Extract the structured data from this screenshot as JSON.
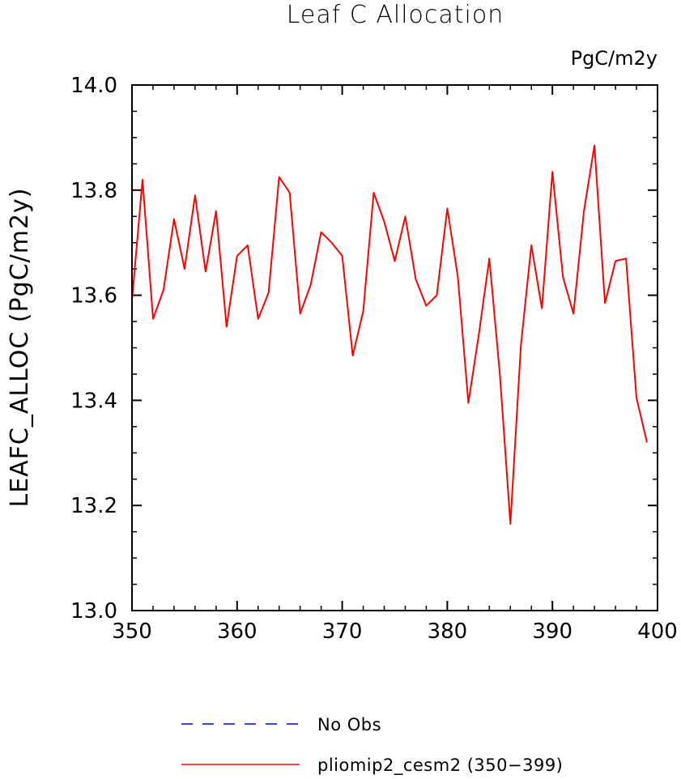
{
  "chart_data": {
    "type": "line",
    "title": "Leaf C Allocation",
    "units": "PgC/m2y",
    "xlabel": "",
    "ylabel": "LEAFC_ALLOC   (PgC/m2y)",
    "xlim": [
      350,
      400
    ],
    "ylim": [
      13.0,
      14.0
    ],
    "x_ticks": [
      350,
      360,
      370,
      380,
      390,
      400
    ],
    "x_tick_labels": [
      "350",
      "360",
      "370",
      "380",
      "390",
      "400"
    ],
    "y_ticks": [
      13.0,
      13.2,
      13.4,
      13.6,
      13.8,
      14.0
    ],
    "y_tick_labels": [
      "13.0",
      "13.2",
      "13.4",
      "13.6",
      "13.8",
      "14.0"
    ],
    "grid": false,
    "legend_position": "bottom",
    "legend": [
      {
        "label": "No Obs",
        "color": "#0000ff",
        "style": "dashed"
      },
      {
        "label": "pliomip2_cesm2 (350−399)",
        "color": "#ff0000",
        "style": "solid"
      }
    ],
    "series": [
      {
        "name": "pliomip2_cesm2 (350−399)",
        "color": "#ff0000",
        "x": [
          350,
          351,
          352,
          353,
          354,
          355,
          356,
          357,
          358,
          359,
          360,
          361,
          362,
          363,
          364,
          365,
          366,
          367,
          368,
          369,
          370,
          371,
          372,
          373,
          374,
          375,
          376,
          377,
          378,
          379,
          380,
          381,
          382,
          383,
          384,
          385,
          386,
          387,
          388,
          389,
          390,
          391,
          392,
          393,
          394,
          395,
          396,
          397,
          398,
          399
        ],
        "y": [
          13.59,
          13.82,
          13.555,
          13.61,
          13.745,
          13.65,
          13.79,
          13.645,
          13.76,
          13.54,
          13.675,
          13.695,
          13.555,
          13.605,
          13.825,
          13.795,
          13.565,
          13.62,
          13.72,
          13.7,
          13.675,
          13.485,
          13.57,
          13.795,
          13.74,
          13.665,
          13.75,
          13.63,
          13.58,
          13.6,
          13.765,
          13.635,
          13.395,
          13.525,
          13.67,
          13.45,
          13.165,
          13.505,
          13.695,
          13.575,
          13.835,
          13.635,
          13.565,
          13.76,
          13.885,
          13.585,
          13.665,
          13.67,
          13.405,
          13.32
        ]
      }
    ]
  }
}
